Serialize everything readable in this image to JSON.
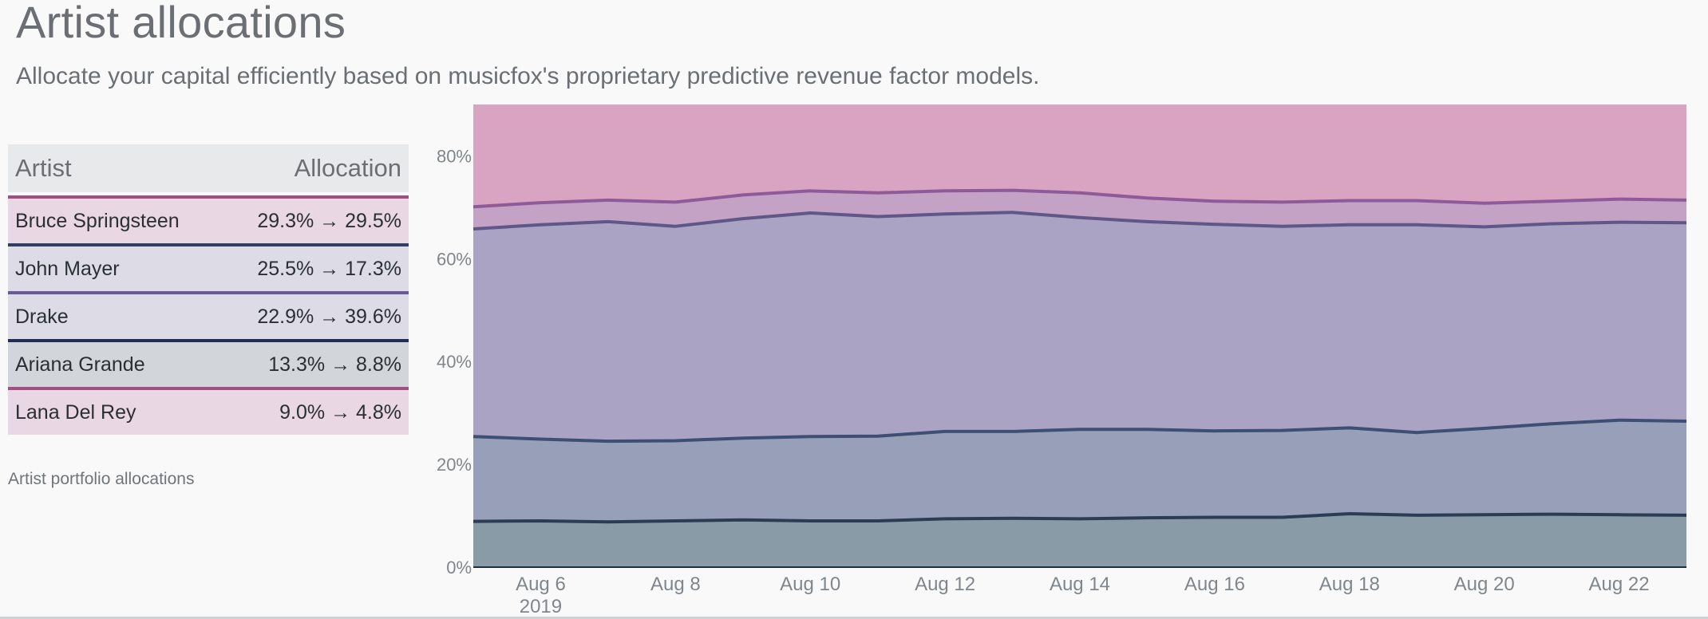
{
  "header": {
    "title": "Artist allocations",
    "subtitle": "Allocate your capital efficiently based on musicfox's proprietary predictive revenue factor models."
  },
  "table": {
    "col_artist": "Artist",
    "col_allocation": "Allocation",
    "rows": [
      {
        "artist": "Bruce Springsteen",
        "allocation": "29.3% → 29.5%",
        "bg": "#e9d7e3",
        "line": "#a44d85"
      },
      {
        "artist": "John Mayer",
        "allocation": "25.5% → 17.3%",
        "bg": "#dcdbe6",
        "line": "#2e3f66"
      },
      {
        "artist": "Drake",
        "allocation": "22.9% → 39.6%",
        "bg": "#dcdbe6",
        "line": "#6a5a9a"
      },
      {
        "artist": "Ariana Grande",
        "allocation": "13.3% → 8.8%",
        "bg": "#d2d6da",
        "line": "#1f3050"
      },
      {
        "artist": "Lana Del Rey",
        "allocation": "9.0% → 4.8%",
        "bg": "#e9d7e3",
        "line": "#a44d85"
      }
    ],
    "caption": "Artist portfolio allocations"
  },
  "chart_data": {
    "type": "area",
    "stacked": true,
    "x_dates": [
      "2019-08-05",
      "2019-08-06",
      "2019-08-07",
      "2019-08-08",
      "2019-08-09",
      "2019-08-10",
      "2019-08-11",
      "2019-08-12",
      "2019-08-13",
      "2019-08-14",
      "2019-08-15",
      "2019-08-16",
      "2019-08-17",
      "2019-08-18",
      "2019-08-19",
      "2019-08-20",
      "2019-08-21",
      "2019-08-22",
      "2019-08-23"
    ],
    "x_ticks": [
      {
        "date": "2019-08-06",
        "label": "Aug 6",
        "sublabel": "2019"
      },
      {
        "date": "2019-08-08",
        "label": "Aug 8",
        "sublabel": ""
      },
      {
        "date": "2019-08-10",
        "label": "Aug 10",
        "sublabel": ""
      },
      {
        "date": "2019-08-12",
        "label": "Aug 12",
        "sublabel": ""
      },
      {
        "date": "2019-08-14",
        "label": "Aug 14",
        "sublabel": ""
      },
      {
        "date": "2019-08-16",
        "label": "Aug 16",
        "sublabel": ""
      },
      {
        "date": "2019-08-18",
        "label": "Aug 18",
        "sublabel": ""
      },
      {
        "date": "2019-08-20",
        "label": "Aug 20",
        "sublabel": ""
      },
      {
        "date": "2019-08-22",
        "label": "Aug 22",
        "sublabel": ""
      }
    ],
    "y_ticks": [
      {
        "value": 0,
        "label": "0%"
      },
      {
        "value": 20,
        "label": "20%"
      },
      {
        "value": 40,
        "label": "40%"
      },
      {
        "value": 60,
        "label": "60%"
      },
      {
        "value": 80,
        "label": "80%"
      }
    ],
    "ylim": [
      0,
      90
    ],
    "grid": false,
    "cumulative_lines": [
      {
        "color": "#2b3d55",
        "values": [
          8.9,
          9.0,
          8.8,
          9.0,
          9.2,
          9.0,
          9.0,
          9.4,
          9.5,
          9.4,
          9.6,
          9.7,
          9.7,
          10.4,
          10.1,
          10.2,
          10.3,
          10.2,
          10.1
        ]
      },
      {
        "color": "#3d4f74",
        "values": [
          25.4,
          24.9,
          24.5,
          24.6,
          25.1,
          25.4,
          25.5,
          26.4,
          26.4,
          26.8,
          26.8,
          26.5,
          26.6,
          27.1,
          26.2,
          27.0,
          27.9,
          28.6,
          28.4
        ]
      },
      {
        "color": "#5e5788",
        "values": [
          65.8,
          66.6,
          67.2,
          66.3,
          67.8,
          68.9,
          68.2,
          68.7,
          69.0,
          68.0,
          67.2,
          66.7,
          66.3,
          66.6,
          66.6,
          66.2,
          66.8,
          67.1,
          67.0
        ]
      },
      {
        "color": "#8e5a9a",
        "values": [
          70.1,
          70.9,
          71.4,
          71.0,
          72.4,
          73.2,
          72.8,
          73.2,
          73.3,
          72.8,
          71.8,
          71.2,
          71.0,
          71.3,
          71.3,
          70.8,
          71.2,
          71.6,
          71.4
        ]
      }
    ],
    "layer_fills": [
      "#8a9ba8",
      "#97a0b8",
      "#aba3c3",
      "#c4a2c5",
      "#d9a4c1"
    ]
  }
}
